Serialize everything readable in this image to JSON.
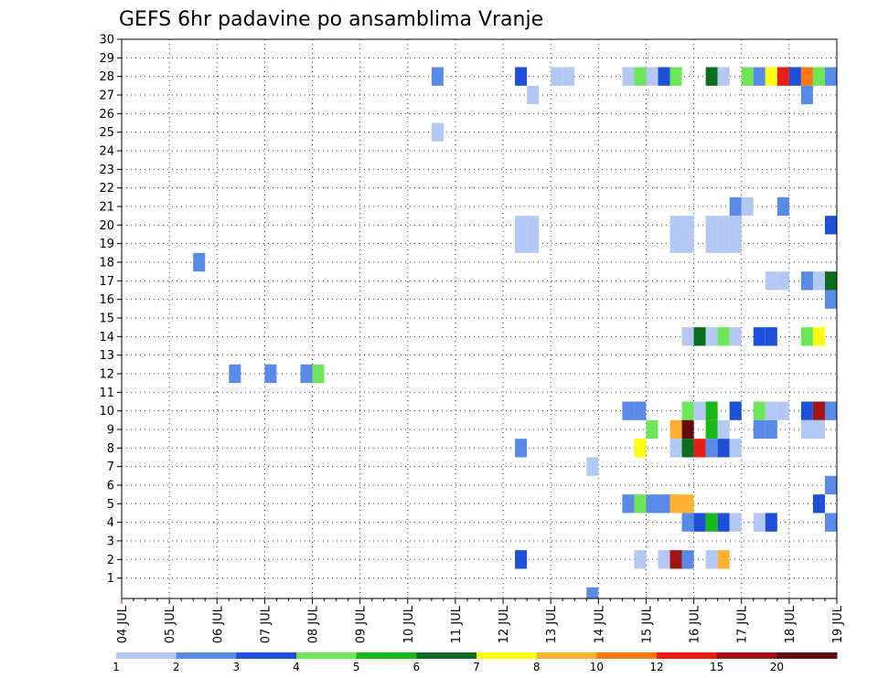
{
  "chart_data": {
    "type": "heatmap",
    "title": "GEFS 6hr padavine po ansamblima Vranje",
    "xlabel": "",
    "ylabel": "",
    "x_ticks": [
      "04 JUL",
      "05 JUL",
      "06 JUL",
      "07 JUL",
      "08 JUL",
      "09 JUL",
      "10 JUL",
      "11 JUL",
      "12 JUL",
      "13 JUL",
      "14 JUL",
      "15 JUL",
      "16 JUL",
      "17 JUL",
      "18 JUL",
      "19 JUL"
    ],
    "x_range_days": [
      0,
      15
    ],
    "y_ticks": [
      "1",
      "2",
      "3",
      "4",
      "5",
      "6",
      "7",
      "8",
      "9",
      "10",
      "11",
      "12",
      "13",
      "14",
      "15",
      "16",
      "17",
      "18",
      "19",
      "20",
      "21",
      "22",
      "23",
      "24",
      "25",
      "26",
      "27",
      "28",
      "29",
      "30"
    ],
    "y_range": [
      0,
      30
    ],
    "grid": true,
    "legend_position": "bottom",
    "colorscale": {
      "labels": [
        "1",
        "2",
        "3",
        "4",
        "5",
        "6",
        "7",
        "8",
        "10",
        "12",
        "15",
        "20"
      ],
      "colors": [
        "#b4c8f4",
        "#5a8ae8",
        "#1e4fd8",
        "#6ee65a",
        "#18b818",
        "#0c6e1c",
        "#ffff14",
        "#ffb232",
        "#ff7814",
        "#e61e14",
        "#a01414",
        "#640a0a"
      ]
    },
    "cell_days": 0.25,
    "cells": [
      {
        "t": 6.5,
        "m": 28,
        "c": 2
      },
      {
        "t": 8.25,
        "m": 28,
        "c": 3
      },
      {
        "t": 8.5,
        "m": 27,
        "c": 1
      },
      {
        "t": 9.0,
        "m": 28,
        "c": 1
      },
      {
        "t": 9.25,
        "m": 28,
        "c": 1
      },
      {
        "t": 10.5,
        "m": 28,
        "c": 1
      },
      {
        "t": 10.75,
        "m": 28,
        "c": 4
      },
      {
        "t": 11.0,
        "m": 28,
        "c": 1
      },
      {
        "t": 11.25,
        "m": 28,
        "c": 3
      },
      {
        "t": 11.5,
        "m": 28,
        "c": 4
      },
      {
        "t": 12.25,
        "m": 28,
        "c": 6
      },
      {
        "t": 12.5,
        "m": 28,
        "c": 1
      },
      {
        "t": 13.0,
        "m": 28,
        "c": 4
      },
      {
        "t": 13.25,
        "m": 28,
        "c": 2
      },
      {
        "t": 13.5,
        "m": 28,
        "c": 7
      },
      {
        "t": 13.75,
        "m": 28,
        "c": 10
      },
      {
        "t": 14.0,
        "m": 28,
        "c": 3
      },
      {
        "t": 14.25,
        "m": 28,
        "c": 9
      },
      {
        "t": 14.5,
        "m": 28,
        "c": 4
      },
      {
        "t": 14.75,
        "m": 28,
        "c": 2
      },
      {
        "t": 15.0,
        "m": 28,
        "c": 1
      },
      {
        "t": 15.25,
        "m": 28,
        "c": 2
      },
      {
        "t": 15.5,
        "m": 28,
        "c": 1
      },
      {
        "t": 15.75,
        "m": 28,
        "c": 3
      },
      {
        "t": 16.0,
        "m": 28,
        "c": 1
      },
      {
        "t": 17.0,
        "m": 28,
        "c": 4
      },
      {
        "t": 17.5,
        "m": 28,
        "c": 2
      },
      {
        "t": 18.0,
        "m": 28,
        "c": 1
      },
      {
        "t": 14.25,
        "m": 27,
        "c": 2
      },
      {
        "t": 15.0,
        "m": 27,
        "c": 6
      },
      {
        "t": 15.25,
        "m": 27,
        "c": 11
      },
      {
        "t": 15.5,
        "m": 27,
        "c": 9
      },
      {
        "t": 15.75,
        "m": 27,
        "c": 3
      },
      {
        "t": 16.0,
        "m": 27,
        "c": 1
      },
      {
        "t": 17.25,
        "m": 27,
        "c": 2
      },
      {
        "t": 17.5,
        "m": 27,
        "c": 4
      },
      {
        "t": 17.75,
        "m": 27,
        "c": 1
      },
      {
        "t": 18.0,
        "m": 27,
        "c": 1
      },
      {
        "t": 16.25,
        "m": 26,
        "c": 6
      },
      {
        "t": 16.5,
        "m": 26,
        "c": 1
      },
      {
        "t": 17.0,
        "m": 26,
        "c": 3
      },
      {
        "t": 17.25,
        "m": 26,
        "c": 2
      },
      {
        "t": 6.5,
        "m": 25,
        "c": 1
      },
      {
        "t": 15.0,
        "m": 25,
        "c": 3
      },
      {
        "t": 15.25,
        "m": 25,
        "c": 5
      },
      {
        "t": 16.0,
        "m": 25,
        "c": 2
      },
      {
        "t": 16.25,
        "m": 25,
        "c": 6
      },
      {
        "t": 17.0,
        "m": 25,
        "c": 2
      },
      {
        "t": 17.25,
        "m": 25,
        "c": 8
      },
      {
        "t": 17.75,
        "m": 25,
        "c": 1
      },
      {
        "t": 18.0,
        "m": 25,
        "c": 4
      },
      {
        "t": 16.0,
        "m": 24,
        "c": 3
      },
      {
        "t": 16.25,
        "m": 24,
        "c": 2
      },
      {
        "t": 15.75,
        "m": 30,
        "c": 1
      },
      {
        "t": 16.25,
        "m": 30,
        "c": 1
      },
      {
        "t": 16.5,
        "m": 30,
        "c": 1
      },
      {
        "t": 18.25,
        "m": 29,
        "c": 3
      },
      {
        "t": 8.25,
        "m": 20,
        "c": 1
      },
      {
        "t": 8.5,
        "m": 20,
        "c": 1
      },
      {
        "t": 11.5,
        "m": 20,
        "c": 1
      },
      {
        "t": 11.75,
        "m": 20,
        "c": 1
      },
      {
        "t": 12.25,
        "m": 20,
        "c": 1
      },
      {
        "t": 12.5,
        "m": 20,
        "c": 1
      },
      {
        "t": 12.75,
        "m": 20,
        "c": 1
      },
      {
        "t": 8.25,
        "m": 19,
        "c": 1
      },
      {
        "t": 8.5,
        "m": 19,
        "c": 1
      },
      {
        "t": 11.5,
        "m": 19,
        "c": 1
      },
      {
        "t": 11.75,
        "m": 19,
        "c": 1
      },
      {
        "t": 12.25,
        "m": 19,
        "c": 1
      },
      {
        "t": 12.5,
        "m": 19,
        "c": 1
      },
      {
        "t": 12.75,
        "m": 19,
        "c": 1
      },
      {
        "t": 12.75,
        "m": 21,
        "c": 2
      },
      {
        "t": 13.0,
        "m": 21,
        "c": 1
      },
      {
        "t": 13.75,
        "m": 21,
        "c": 2
      },
      {
        "t": 14.75,
        "m": 20,
        "c": 3
      },
      {
        "t": 16.75,
        "m": 21,
        "c": 11
      },
      {
        "t": 17.0,
        "m": 21,
        "c": 3
      },
      {
        "t": 17.5,
        "m": 21,
        "c": 1
      },
      {
        "t": 17.75,
        "m": 21,
        "c": 1
      },
      {
        "t": 18.25,
        "m": 21,
        "c": 1
      },
      {
        "t": 18.5,
        "m": 21,
        "c": 1
      },
      {
        "t": 1.5,
        "m": 18,
        "c": 2
      },
      {
        "t": 18.25,
        "m": 18,
        "c": 3
      },
      {
        "t": 13.5,
        "m": 17,
        "c": 1
      },
      {
        "t": 13.75,
        "m": 17,
        "c": 1
      },
      {
        "t": 14.25,
        "m": 17,
        "c": 2
      },
      {
        "t": 14.5,
        "m": 17,
        "c": 1
      },
      {
        "t": 14.75,
        "m": 17,
        "c": 6
      },
      {
        "t": 17.25,
        "m": 17,
        "c": 1
      },
      {
        "t": 17.5,
        "m": 17,
        "c": 2
      },
      {
        "t": 17.75,
        "m": 17,
        "c": 2
      },
      {
        "t": 18.0,
        "m": 17,
        "c": 1
      },
      {
        "t": 14.75,
        "m": 16,
        "c": 2
      },
      {
        "t": 15.0,
        "m": 16,
        "c": 1
      },
      {
        "t": 15.5,
        "m": 16,
        "c": 8
      },
      {
        "t": 15.75,
        "m": 16,
        "c": 6
      },
      {
        "t": 16.25,
        "m": 16,
        "c": 1
      },
      {
        "t": 16.5,
        "m": 16,
        "c": 2
      },
      {
        "t": 15.75,
        "m": 15,
        "c": 1
      },
      {
        "t": 16.0,
        "m": 15,
        "c": 1
      },
      {
        "t": 11.75,
        "m": 14,
        "c": 1
      },
      {
        "t": 12.0,
        "m": 14,
        "c": 6
      },
      {
        "t": 12.25,
        "m": 14,
        "c": 1
      },
      {
        "t": 12.5,
        "m": 14,
        "c": 4
      },
      {
        "t": 12.75,
        "m": 14,
        "c": 1
      },
      {
        "t": 13.25,
        "m": 14,
        "c": 3
      },
      {
        "t": 13.5,
        "m": 14,
        "c": 3
      },
      {
        "t": 14.25,
        "m": 14,
        "c": 4
      },
      {
        "t": 14.5,
        "m": 14,
        "c": 7
      },
      {
        "t": 15.25,
        "m": 14,
        "c": 2
      },
      {
        "t": 15.5,
        "m": 14,
        "c": 1
      },
      {
        "t": 18.25,
        "m": 14,
        "c": 1
      },
      {
        "t": 15.75,
        "m": 13,
        "c": 1
      },
      {
        "t": 2.25,
        "m": 12,
        "c": 2
      },
      {
        "t": 3.0,
        "m": 12,
        "c": 2
      },
      {
        "t": 3.75,
        "m": 12,
        "c": 2
      },
      {
        "t": 4.0,
        "m": 12,
        "c": 4
      },
      {
        "t": 17.25,
        "m": 11,
        "c": 12
      },
      {
        "t": 17.5,
        "m": 11,
        "c": 5
      },
      {
        "t": 18.0,
        "m": 11,
        "c": 5
      },
      {
        "t": 18.25,
        "m": 11,
        "c": 1
      },
      {
        "t": 18.5,
        "m": 11,
        "c": 4
      },
      {
        "t": 10.5,
        "m": 10,
        "c": 2
      },
      {
        "t": 10.75,
        "m": 10,
        "c": 2
      },
      {
        "t": 11.75,
        "m": 10,
        "c": 4
      },
      {
        "t": 12.0,
        "m": 10,
        "c": 1
      },
      {
        "t": 12.25,
        "m": 10,
        "c": 5
      },
      {
        "t": 12.75,
        "m": 10,
        "c": 3
      },
      {
        "t": 13.25,
        "m": 10,
        "c": 4
      },
      {
        "t": 13.5,
        "m": 10,
        "c": 1
      },
      {
        "t": 13.75,
        "m": 10,
        "c": 1
      },
      {
        "t": 14.25,
        "m": 10,
        "c": 3
      },
      {
        "t": 14.5,
        "m": 10,
        "c": 11
      },
      {
        "t": 14.75,
        "m": 10,
        "c": 2
      },
      {
        "t": 15.0,
        "m": 10,
        "c": 1
      },
      {
        "t": 15.25,
        "m": 10,
        "c": 3
      },
      {
        "t": 15.5,
        "m": 10,
        "c": 3
      },
      {
        "t": 15.75,
        "m": 10,
        "c": 2
      },
      {
        "t": 11.0,
        "m": 9,
        "c": 4
      },
      {
        "t": 11.5,
        "m": 9,
        "c": 8
      },
      {
        "t": 11.75,
        "m": 9,
        "c": 12
      },
      {
        "t": 12.25,
        "m": 9,
        "c": 5
      },
      {
        "t": 12.5,
        "m": 9,
        "c": 1
      },
      {
        "t": 13.25,
        "m": 9,
        "c": 2
      },
      {
        "t": 13.5,
        "m": 9,
        "c": 2
      },
      {
        "t": 14.25,
        "m": 9,
        "c": 1
      },
      {
        "t": 14.5,
        "m": 9,
        "c": 1
      },
      {
        "t": 16.5,
        "m": 9,
        "c": 1
      },
      {
        "t": 8.25,
        "m": 8,
        "c": 2
      },
      {
        "t": 10.75,
        "m": 8,
        "c": 7
      },
      {
        "t": 11.5,
        "m": 8,
        "c": 1
      },
      {
        "t": 11.75,
        "m": 8,
        "c": 6
      },
      {
        "t": 12.0,
        "m": 8,
        "c": 10
      },
      {
        "t": 12.25,
        "m": 8,
        "c": 2
      },
      {
        "t": 12.5,
        "m": 8,
        "c": 3
      },
      {
        "t": 12.75,
        "m": 8,
        "c": 1
      },
      {
        "t": 9.75,
        "m": 7,
        "c": 1
      },
      {
        "t": 14.75,
        "m": 6,
        "c": 2
      },
      {
        "t": 10.5,
        "m": 5,
        "c": 2
      },
      {
        "t": 10.75,
        "m": 5,
        "c": 4
      },
      {
        "t": 11.0,
        "m": 5,
        "c": 2
      },
      {
        "t": 11.25,
        "m": 5,
        "c": 2
      },
      {
        "t": 11.5,
        "m": 5,
        "c": 8
      },
      {
        "t": 11.75,
        "m": 5,
        "c": 8
      },
      {
        "t": 14.5,
        "m": 5,
        "c": 3
      },
      {
        "t": 17.25,
        "m": 5,
        "c": 2
      },
      {
        "t": 11.75,
        "m": 4,
        "c": 2
      },
      {
        "t": 12.0,
        "m": 4,
        "c": 3
      },
      {
        "t": 12.25,
        "m": 4,
        "c": 5
      },
      {
        "t": 12.5,
        "m": 4,
        "c": 3
      },
      {
        "t": 12.75,
        "m": 4,
        "c": 1
      },
      {
        "t": 13.25,
        "m": 4,
        "c": 1
      },
      {
        "t": 13.5,
        "m": 4,
        "c": 3
      },
      {
        "t": 14.75,
        "m": 4,
        "c": 2
      },
      {
        "t": 15.75,
        "m": 4,
        "c": 1
      },
      {
        "t": 17.5,
        "m": 4,
        "c": 3
      },
      {
        "t": 16.75,
        "m": 3,
        "c": 4
      },
      {
        "t": 17.25,
        "m": 3,
        "c": 2
      },
      {
        "t": 17.5,
        "m": 3,
        "c": 4
      },
      {
        "t": 17.75,
        "m": 3,
        "c": 1
      },
      {
        "t": 18.0,
        "m": 3,
        "c": 8
      },
      {
        "t": 18.25,
        "m": 3,
        "c": 5
      },
      {
        "t": 8.25,
        "m": 2,
        "c": 3
      },
      {
        "t": 10.75,
        "m": 2,
        "c": 1
      },
      {
        "t": 11.25,
        "m": 2,
        "c": 1
      },
      {
        "t": 11.5,
        "m": 2,
        "c": 11
      },
      {
        "t": 11.75,
        "m": 2,
        "c": 2
      },
      {
        "t": 12.25,
        "m": 2,
        "c": 1
      },
      {
        "t": 12.5,
        "m": 2,
        "c": 8
      },
      {
        "t": 16.0,
        "m": 1,
        "c": 1
      },
      {
        "t": 9.75,
        "m": 0,
        "c": 2
      }
    ]
  }
}
